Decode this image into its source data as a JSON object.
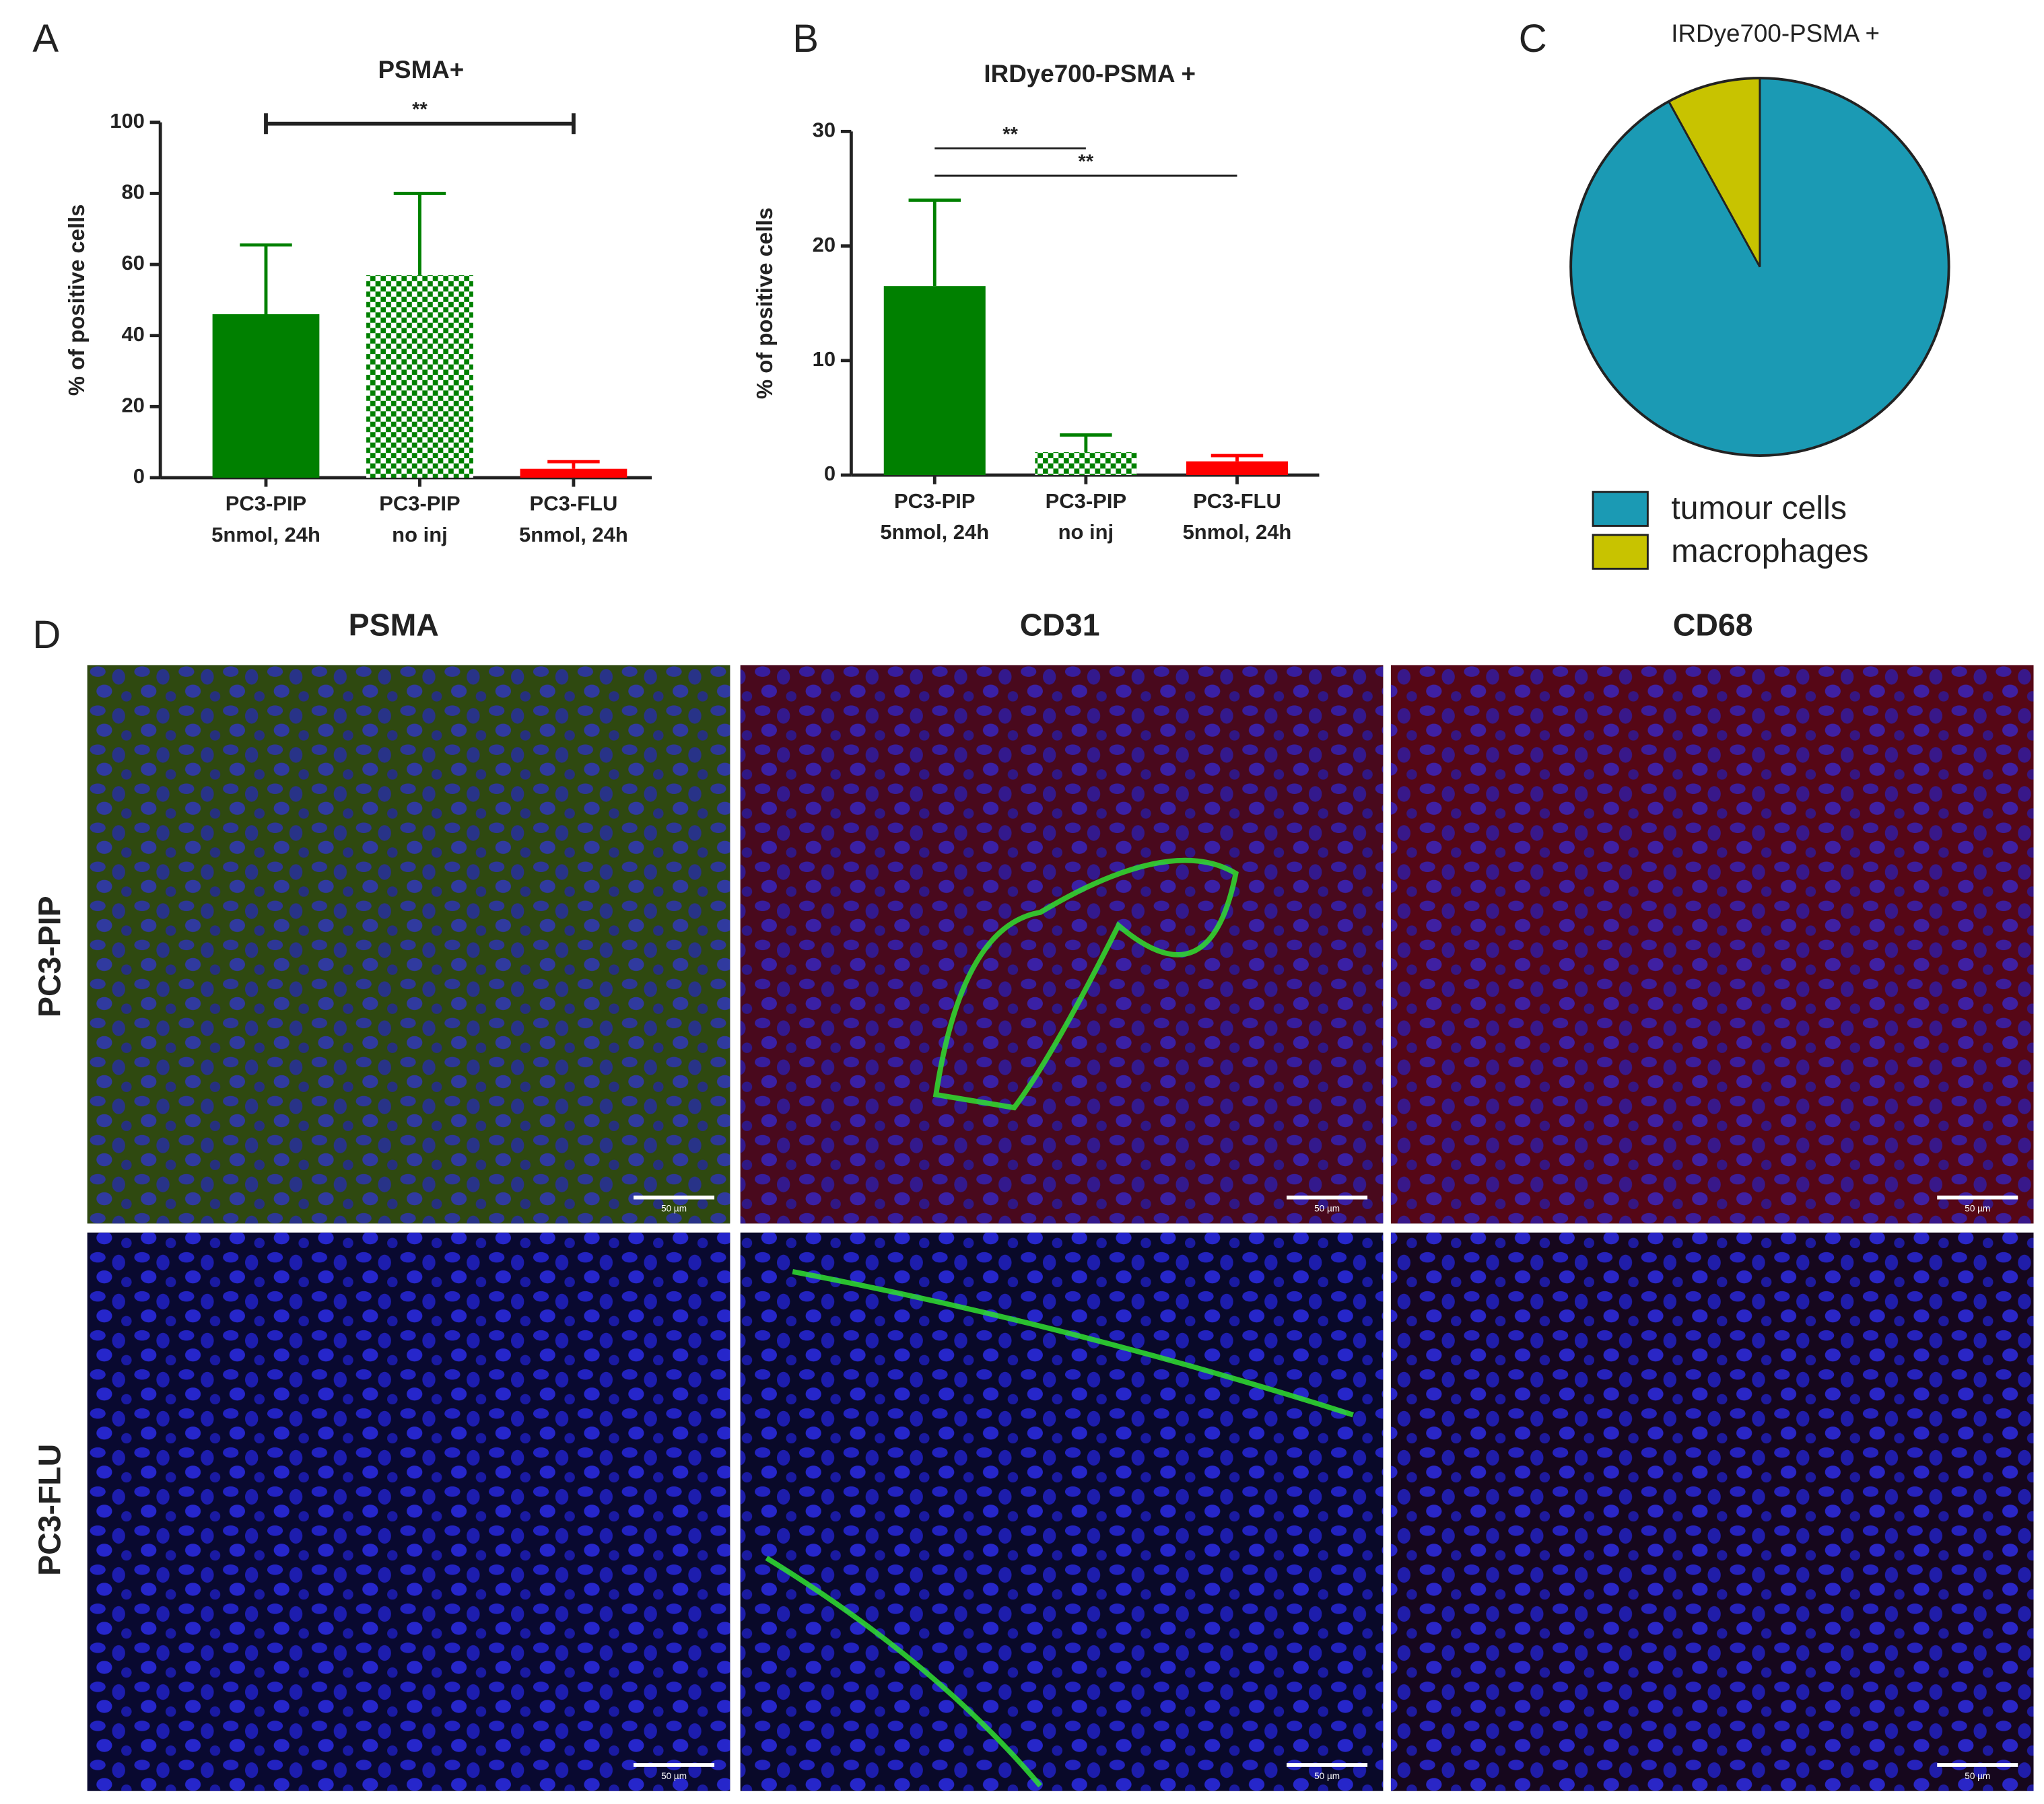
{
  "figure": {
    "panel_labels": [
      "A",
      "B",
      "C",
      "D"
    ],
    "microscopy": {
      "columns": [
        "PSMA",
        "CD31",
        "CD68"
      ],
      "rows": [
        "PC3-PIP",
        "PC3-FLU"
      ],
      "scale_bar": "50 µm"
    }
  },
  "chart_data": [
    {
      "type": "bar",
      "title": "PSMA+",
      "ylabel": "% of positive cells",
      "categories": [
        [
          "PC3-PIP",
          "5nmol, 24h"
        ],
        [
          "PC3-PIP",
          "no inj"
        ],
        [
          "PC3-FLU",
          "5nmol, 24h"
        ]
      ],
      "values": [
        46,
        57,
        2.5
      ],
      "errors": [
        19.5,
        23,
        2
      ],
      "colors": [
        "#008000",
        "#008000",
        "#ff0000"
      ],
      "patterns": [
        "solid",
        "checker",
        "solid"
      ],
      "ylim": [
        0,
        100
      ],
      "yticks": [
        0,
        20,
        40,
        60,
        80,
        100
      ],
      "significance": [
        {
          "from": 0,
          "to": 2,
          "label": "**"
        }
      ]
    },
    {
      "type": "bar",
      "title": "IRDye700-PSMA +",
      "ylabel": "% of positive cells",
      "categories": [
        [
          "PC3-PIP",
          "5nmol, 24h"
        ],
        [
          "PC3-PIP",
          "no inj"
        ],
        [
          "PC3-FLU",
          "5nmol, 24h"
        ]
      ],
      "values": [
        16.5,
        2,
        1.2
      ],
      "errors": [
        7.5,
        1.5,
        0.5
      ],
      "colors": [
        "#008000",
        "#008000",
        "#ff0000"
      ],
      "patterns": [
        "solid",
        "checker",
        "solid"
      ],
      "ylim": [
        0,
        30
      ],
      "yticks": [
        0,
        10,
        20,
        30
      ],
      "significance": [
        {
          "from": 0,
          "to": 1,
          "label": "**"
        },
        {
          "from": 0,
          "to": 2,
          "label": "**"
        }
      ]
    },
    {
      "type": "pie",
      "title": "IRDye700-PSMA +",
      "categories": [
        "tumour cells",
        "macrophages"
      ],
      "values": [
        92,
        8
      ],
      "colors": [
        "#1b9ab4",
        "#c8c300"
      ]
    }
  ]
}
